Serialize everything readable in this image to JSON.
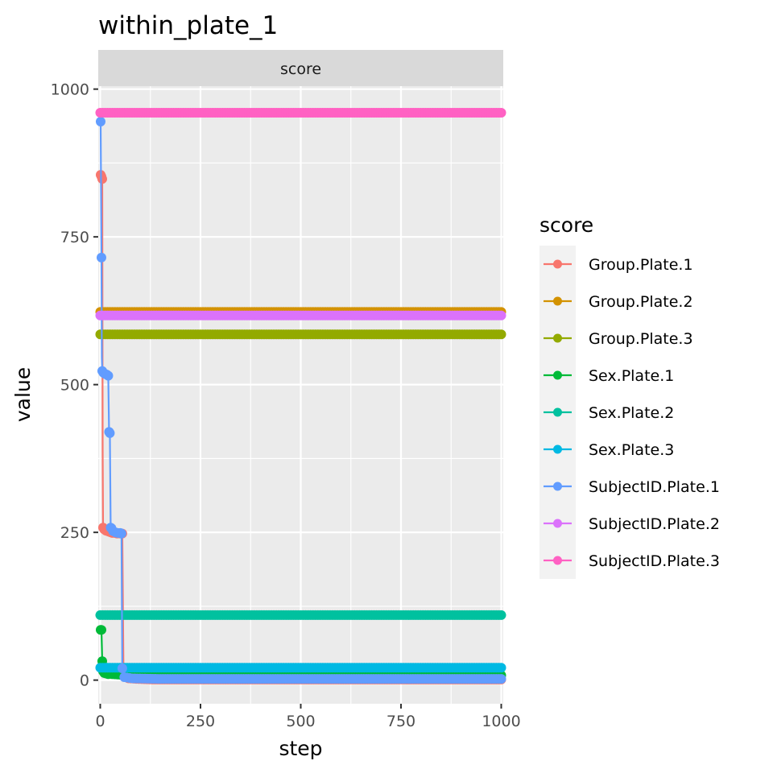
{
  "chart_data": {
    "type": "line",
    "title": "within_plate_1",
    "facet_label": "score",
    "xlabel": "step",
    "ylabel": "value",
    "xlim": [
      -5,
      1005
    ],
    "ylim": [
      -40,
      1005
    ],
    "x_ticks": [
      0,
      250,
      500,
      750,
      1000
    ],
    "y_ticks": [
      0,
      250,
      500,
      750,
      1000
    ],
    "x_tick_labels": [
      "0",
      "250",
      "500",
      "750",
      "1000"
    ],
    "y_tick_labels": [
      "0",
      "250",
      "500",
      "750",
      "1000"
    ],
    "grid": true,
    "legend": {
      "title": "score",
      "placement": "right"
    },
    "series": [
      {
        "name": "Group.Plate.1",
        "color": "#F8766D",
        "points": [
          [
            1,
            855
          ],
          [
            3,
            852
          ],
          [
            5,
            848
          ],
          [
            6,
            390
          ],
          [
            7,
            258
          ],
          [
            10,
            255
          ],
          [
            14,
            253
          ],
          [
            18,
            252
          ],
          [
            22,
            251
          ],
          [
            26,
            250
          ],
          [
            30,
            249
          ],
          [
            36,
            249
          ],
          [
            42,
            248
          ],
          [
            50,
            248
          ],
          [
            55,
            248
          ],
          [
            58,
            10
          ],
          [
            70,
            3
          ],
          [
            90,
            2
          ],
          [
            130,
            1
          ],
          [
            300,
            1
          ],
          [
            600,
            1
          ],
          [
            1000,
            1
          ]
        ]
      },
      {
        "name": "Group.Plate.2",
        "color": "#D39200",
        "points": [
          [
            0,
            623
          ],
          [
            250,
            623
          ],
          [
            500,
            623
          ],
          [
            750,
            623
          ],
          [
            1000,
            623
          ]
        ]
      },
      {
        "name": "Group.Plate.3",
        "color": "#93AA00",
        "points": [
          [
            0,
            585
          ],
          [
            250,
            585
          ],
          [
            500,
            585
          ],
          [
            750,
            585
          ],
          [
            1000,
            585
          ]
        ]
      },
      {
        "name": "Sex.Plate.1",
        "color": "#00BA38",
        "points": [
          [
            1,
            85
          ],
          [
            3,
            85
          ],
          [
            5,
            32
          ],
          [
            7,
            15
          ],
          [
            10,
            12
          ],
          [
            15,
            11
          ],
          [
            20,
            10
          ],
          [
            30,
            10
          ],
          [
            50,
            9
          ],
          [
            100,
            9
          ],
          [
            300,
            8
          ],
          [
            600,
            8
          ],
          [
            1000,
            8
          ]
        ]
      },
      {
        "name": "Sex.Plate.2",
        "color": "#00C19F",
        "points": [
          [
            0,
            110
          ],
          [
            250,
            110
          ],
          [
            500,
            110
          ],
          [
            750,
            110
          ],
          [
            1000,
            110
          ]
        ]
      },
      {
        "name": "Sex.Plate.3",
        "color": "#00B9E3",
        "points": [
          [
            0,
            21
          ],
          [
            250,
            21
          ],
          [
            500,
            21
          ],
          [
            750,
            21
          ],
          [
            1000,
            21
          ]
        ]
      },
      {
        "name": "SubjectID.Plate.1",
        "color": "#619CFF",
        "points": [
          [
            1,
            945
          ],
          [
            3,
            715
          ],
          [
            4,
            545
          ],
          [
            5,
            523
          ],
          [
            8,
            520
          ],
          [
            12,
            518
          ],
          [
            16,
            517
          ],
          [
            20,
            515
          ],
          [
            22,
            420
          ],
          [
            24,
            418
          ],
          [
            26,
            258
          ],
          [
            28,
            257
          ],
          [
            32,
            252
          ],
          [
            38,
            250
          ],
          [
            44,
            249
          ],
          [
            50,
            249
          ],
          [
            53,
            248
          ],
          [
            55,
            20
          ],
          [
            60,
            5
          ],
          [
            80,
            3
          ],
          [
            150,
            2
          ],
          [
            400,
            2
          ],
          [
            700,
            2
          ],
          [
            1000,
            2
          ]
        ]
      },
      {
        "name": "SubjectID.Plate.2",
        "color": "#DB72FB",
        "points": [
          [
            0,
            617
          ],
          [
            250,
            617
          ],
          [
            500,
            617
          ],
          [
            750,
            617
          ],
          [
            1000,
            617
          ]
        ]
      },
      {
        "name": "SubjectID.Plate.3",
        "color": "#FF61C3",
        "points": [
          [
            0,
            960
          ],
          [
            250,
            960
          ],
          [
            500,
            960
          ],
          [
            750,
            960
          ],
          [
            1000,
            960
          ]
        ]
      }
    ]
  }
}
